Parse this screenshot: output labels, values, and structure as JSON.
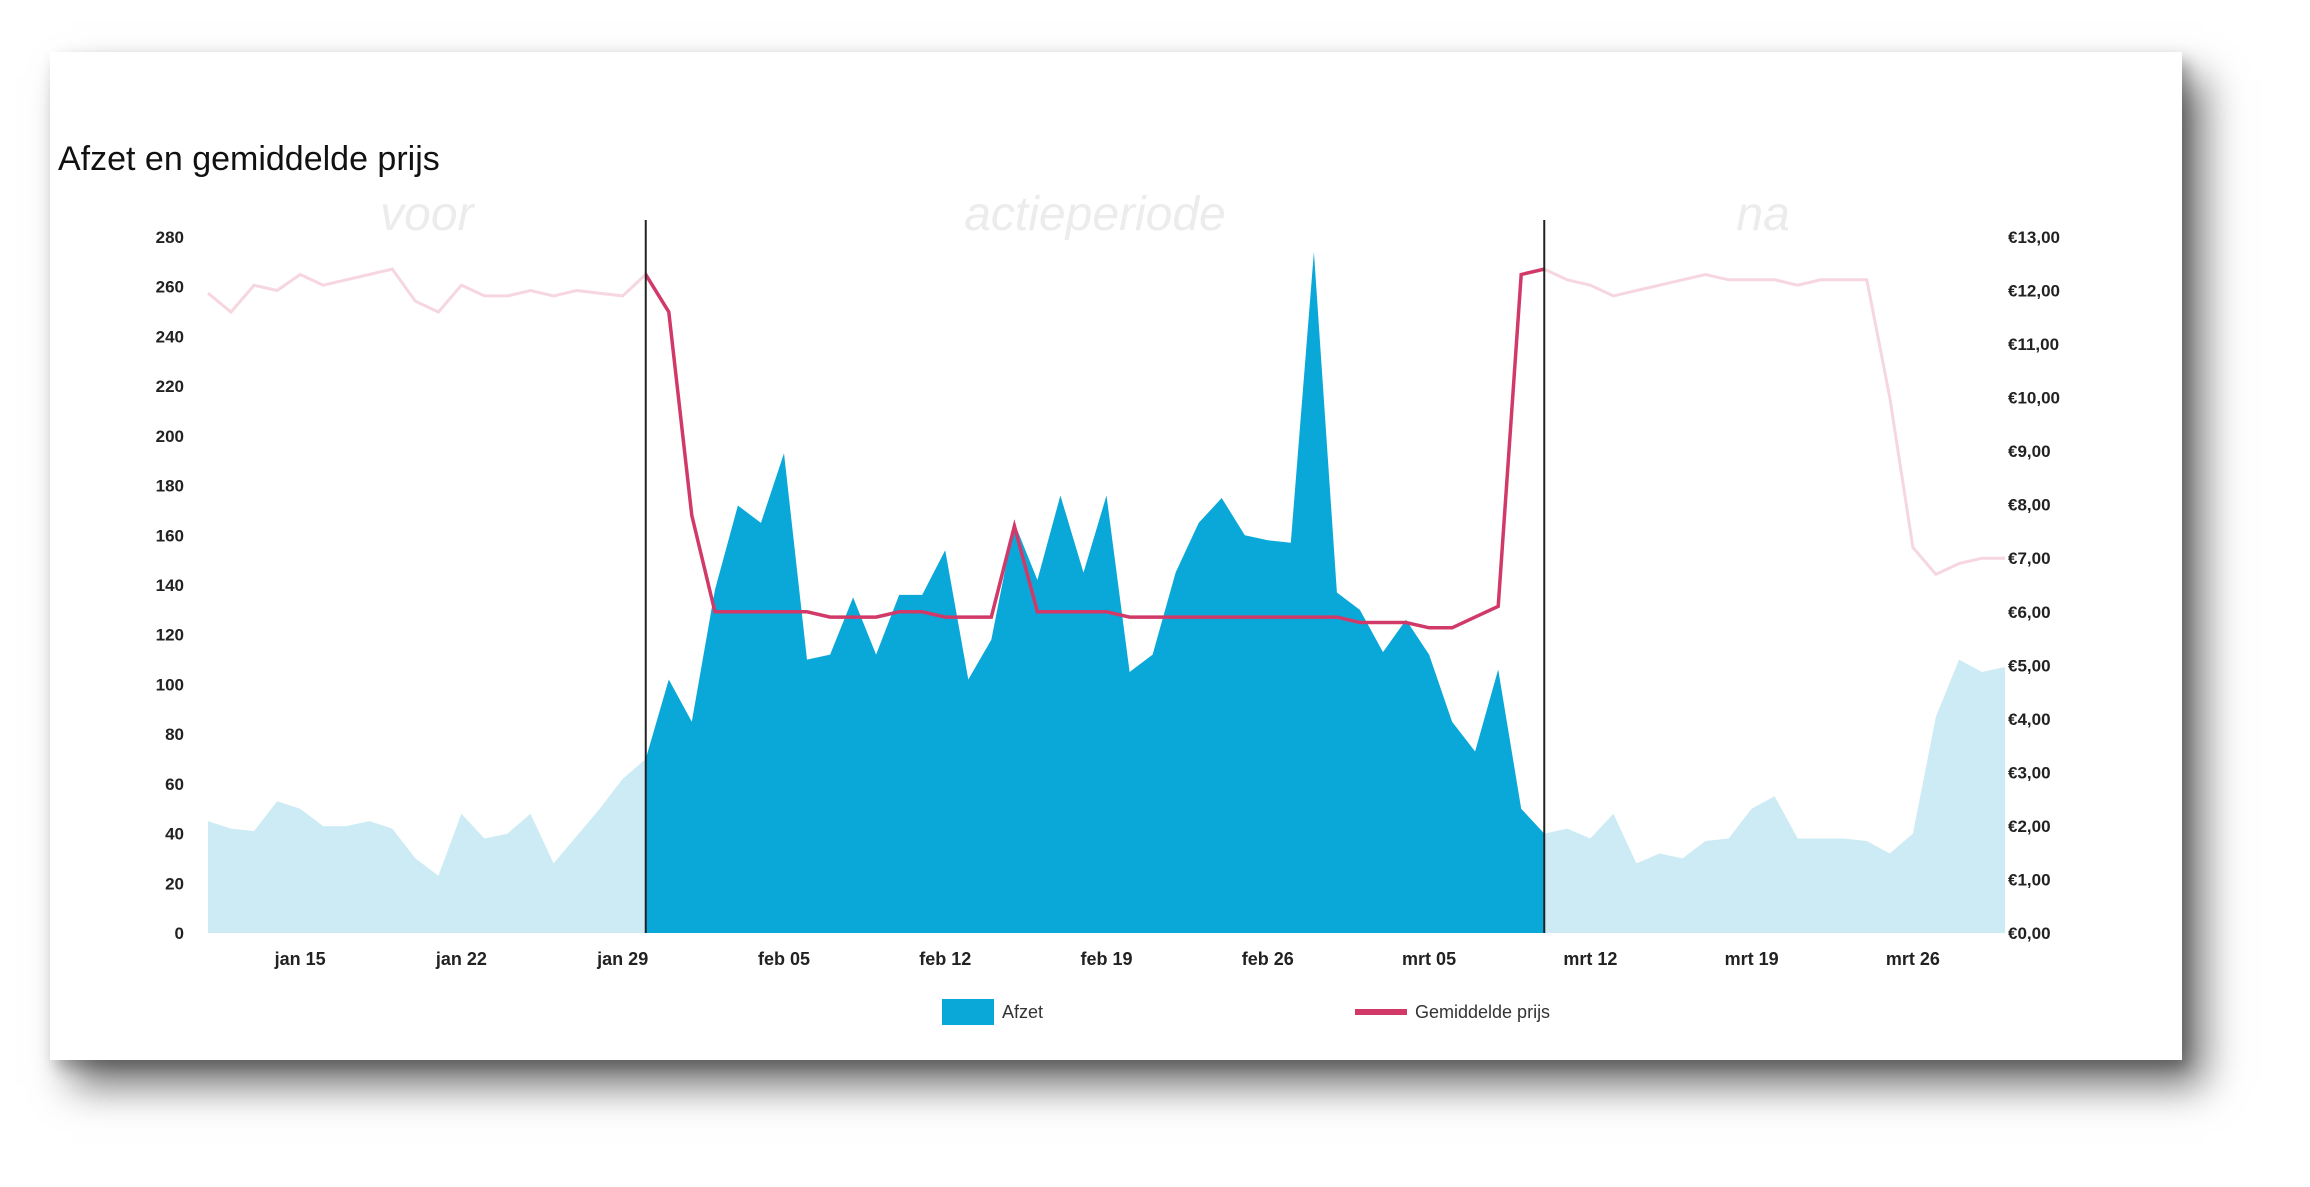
{
  "chart_data": {
    "type": "area",
    "title": "Afzet en gemiddelde prijs",
    "periods": [
      {
        "label": "voor",
        "start_day": 0,
        "end_day": 19
      },
      {
        "label": "actieperiode",
        "start_day": 19,
        "end_day": 58
      },
      {
        "label": "na",
        "start_day": 58,
        "end_day": 77
      }
    ],
    "x_ticks": [
      {
        "label": "jan 15",
        "day": 4
      },
      {
        "label": "jan 22",
        "day": 11
      },
      {
        "label": "jan 29",
        "day": 18
      },
      {
        "label": "feb 05",
        "day": 25
      },
      {
        "label": "feb 12",
        "day": 32
      },
      {
        "label": "feb 19",
        "day": 39
      },
      {
        "label": "feb 26",
        "day": 46
      },
      {
        "label": "mrt 05",
        "day": 53
      },
      {
        "label": "mrt 12",
        "day": 60
      },
      {
        "label": "mrt 19",
        "day": 67
      },
      {
        "label": "mrt 26",
        "day": 74
      }
    ],
    "y_left": {
      "min": 0,
      "max": 280,
      "ticks": [
        "0",
        "20",
        "40",
        "60",
        "80",
        "100",
        "120",
        "140",
        "160",
        "180",
        "200",
        "220",
        "240",
        "260",
        "280"
      ]
    },
    "y_right": {
      "min": 0,
      "max": 13,
      "ticks": [
        "€0,00",
        "€1,00",
        "€2,00",
        "€3,00",
        "€4,00",
        "€5,00",
        "€6,00",
        "€7,00",
        "€8,00",
        "€9,00",
        "€10,00",
        "€11,00",
        "€12,00",
        "€13,00"
      ]
    },
    "series": [
      {
        "name": "Afzet",
        "axis": "left",
        "type": "area",
        "color": "#0aa8d8",
        "muted_color": "#cdebf5",
        "values": [
          45,
          42,
          41,
          53,
          50,
          43,
          43,
          45,
          42,
          30,
          23,
          48,
          38,
          40,
          48,
          28,
          39,
          50,
          62,
          70,
          102,
          85,
          138,
          172,
          165,
          193,
          110,
          112,
          135,
          112,
          136,
          136,
          154,
          102,
          118,
          165,
          142,
          176,
          145,
          176,
          105,
          112,
          145,
          165,
          175,
          160,
          158,
          157,
          274,
          137,
          130,
          113,
          126,
          112,
          85,
          73,
          106,
          50,
          40,
          42,
          38,
          48,
          28,
          32,
          30,
          37,
          38,
          50,
          55,
          38,
          38,
          38,
          37,
          32,
          40,
          87,
          110,
          105,
          107
        ],
        "x_start": 0,
        "x_step": 1
      },
      {
        "name": "Gemiddelde prijs",
        "axis": "right",
        "type": "line",
        "color": "#d13a68",
        "muted_color": "#f6d6df",
        "values": [
          11.95,
          11.6,
          12.1,
          12.0,
          12.3,
          12.1,
          12.2,
          12.3,
          12.4,
          11.8,
          11.6,
          12.1,
          11.9,
          11.9,
          12.0,
          11.9,
          12.0,
          11.95,
          11.9,
          12.3,
          11.6,
          7.8,
          6.0,
          6.0,
          6.0,
          6.0,
          6.0,
          5.9,
          5.9,
          5.9,
          6.0,
          6.0,
          5.9,
          5.9,
          5.9,
          7.6,
          6.0,
          6.0,
          6.0,
          6.0,
          5.9,
          5.9,
          5.9,
          5.9,
          5.9,
          5.9,
          5.9,
          5.9,
          5.9,
          5.9,
          5.8,
          5.8,
          5.8,
          5.7,
          5.7,
          5.9,
          6.1,
          12.3,
          12.4,
          12.2,
          12.1,
          11.9,
          12.0,
          12.1,
          12.2,
          12.3,
          12.2,
          12.2,
          12.2,
          12.1,
          12.2,
          12.2,
          12.2,
          10.0,
          7.2,
          6.7,
          6.9,
          7.0,
          7.0
        ],
        "x_start": 0,
        "x_step": 1
      }
    ],
    "legend": [
      {
        "label": "Afzet",
        "marker": "box",
        "color": "#0aa8d8"
      },
      {
        "label": "Gemiddelde prijs",
        "marker": "line",
        "color": "#d13a68"
      }
    ],
    "legend_position": "bottom-center",
    "x_range_days": [
      0,
      77
    ],
    "grid": false
  }
}
